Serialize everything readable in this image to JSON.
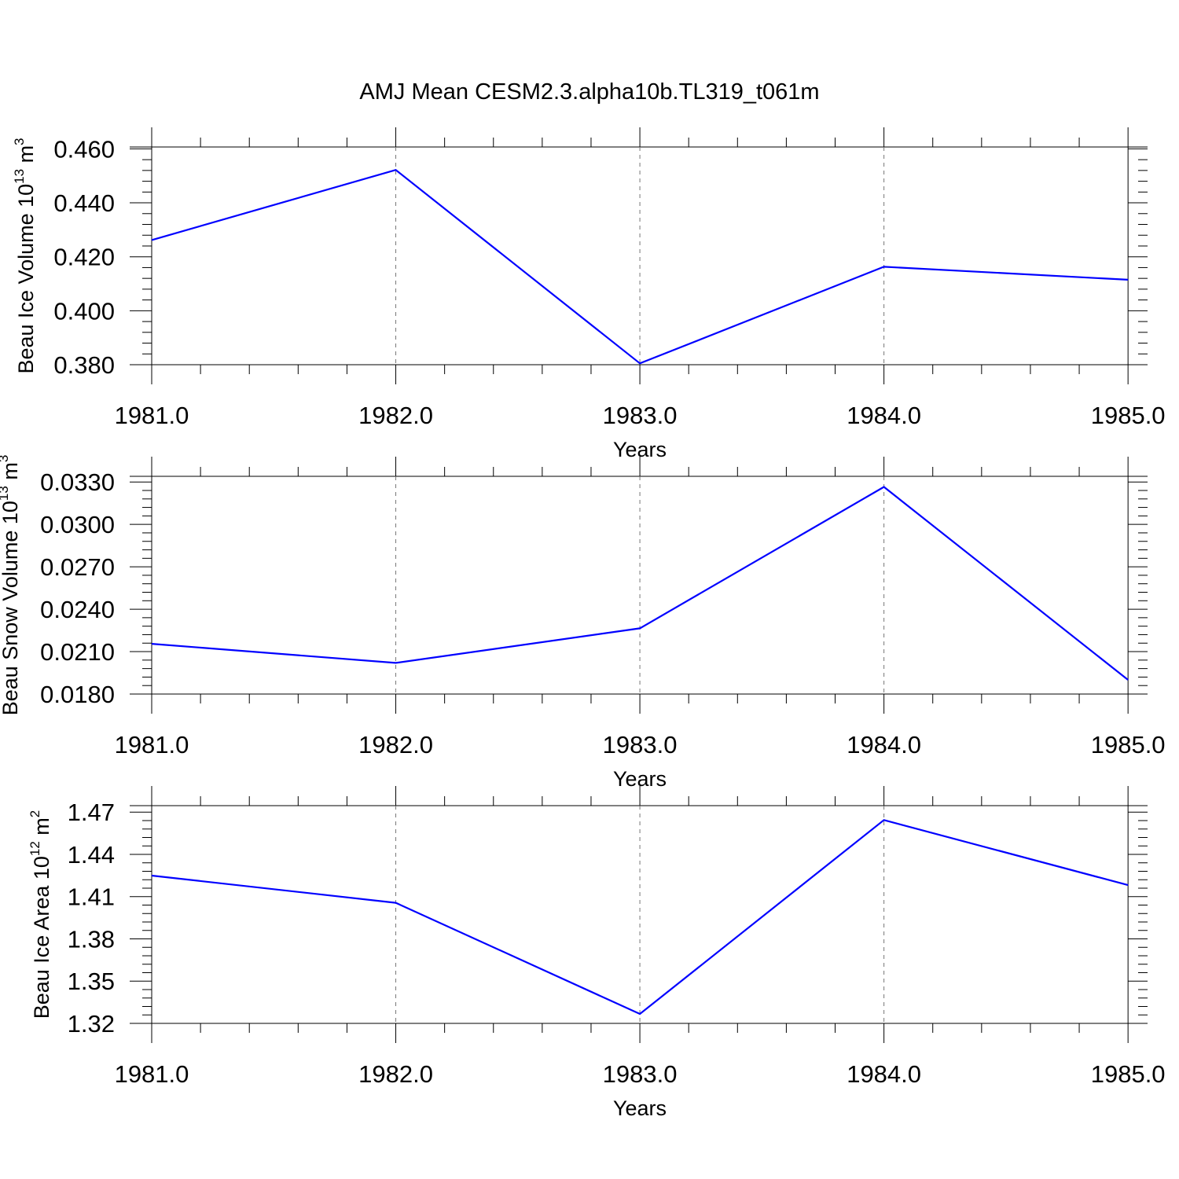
{
  "chart_data": [
    {
      "type": "line",
      "title": "AMJ Mean CESM2.3.alpha10b.TL319_t061m",
      "xlabel": "Years",
      "ylabel": "Beau Ice Volume 10",
      "ylabel_exponent": "13",
      "ylabel_unit": "m",
      "ylabel_unit_exponent": "3",
      "x": [
        1981,
        1982,
        1983,
        1984,
        1985
      ],
      "series": [
        {
          "values": [
            0.4262,
            0.4522,
            0.3805,
            0.4163,
            0.4115
          ],
          "color": "#0000ff"
        }
      ],
      "xlim": [
        1981,
        1985.08
      ],
      "ylim": [
        0.38,
        0.4607
      ],
      "xticks": [
        "1981.0",
        "1982.0",
        "1983.0",
        "1984.0",
        "1985.0"
      ],
      "yticks": [
        "0.380",
        "0.400",
        "0.420",
        "0.440",
        "0.460"
      ],
      "ytick_values": [
        0.38,
        0.4,
        0.42,
        0.44,
        0.46
      ],
      "ytick_minor_step": 0.004,
      "grid": "vertical dashed at major x ticks"
    },
    {
      "type": "line",
      "xlabel": "Years",
      "ylabel": "Beau Snow Volume 10",
      "ylabel_exponent": "13",
      "ylabel_unit": "m",
      "ylabel_unit_exponent": "3",
      "x": [
        1981,
        1982,
        1983,
        1984,
        1985
      ],
      "series": [
        {
          "values": [
            0.02155,
            0.0202,
            0.02265,
            0.03265,
            0.019
          ],
          "color": "#0000ff"
        }
      ],
      "xlim": [
        1981,
        1985.08
      ],
      "ylim": [
        0.018,
        0.0334
      ],
      "xticks": [
        "1981.0",
        "1982.0",
        "1983.0",
        "1984.0",
        "1985.0"
      ],
      "yticks": [
        "0.0180",
        "0.0210",
        "0.0240",
        "0.0270",
        "0.0300",
        "0.0330"
      ],
      "ytick_values": [
        0.018,
        0.021,
        0.024,
        0.027,
        0.03,
        0.033
      ],
      "ytick_minor_step": 0.0006,
      "grid": "vertical dashed at major x ticks"
    },
    {
      "type": "line",
      "xlabel": "Years",
      "ylabel": "Beau Ice Area 10",
      "ylabel_exponent": "12",
      "ylabel_unit": "m",
      "ylabel_unit_exponent": "2",
      "x": [
        1981,
        1982,
        1983,
        1984,
        1985
      ],
      "series": [
        {
          "values": [
            1.4249,
            1.4056,
            1.3267,
            1.4644,
            1.4182
          ],
          "color": "#0000ff"
        }
      ],
      "xlim": [
        1981,
        1985.08
      ],
      "ylim": [
        1.32,
        1.4746
      ],
      "xticks": [
        "1981.0",
        "1982.0",
        "1983.0",
        "1984.0",
        "1985.0"
      ],
      "yticks": [
        "1.32",
        "1.35",
        "1.38",
        "1.41",
        "1.44",
        "1.47"
      ],
      "ytick_values": [
        1.32,
        1.35,
        1.38,
        1.41,
        1.44,
        1.47
      ],
      "ytick_minor_step": 0.006,
      "grid": "vertical dashed at major x ticks"
    }
  ]
}
